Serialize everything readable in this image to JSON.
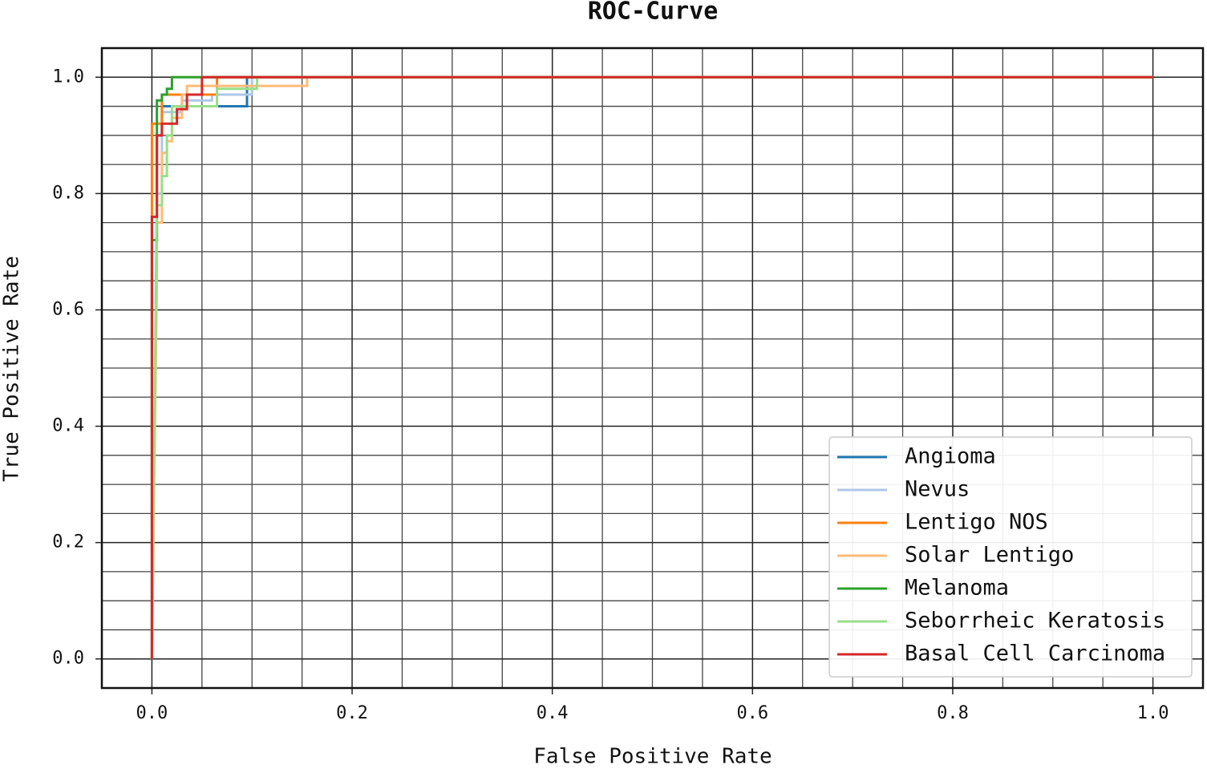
{
  "chart_data": {
    "type": "line",
    "title": "ROC-Curve",
    "x_label": "False Positive Rate",
    "y_label": "True Positive Rate",
    "xlim": [
      -0.05,
      1.05
    ],
    "ylim": [
      -0.05,
      1.05
    ],
    "xticks": [
      {
        "value": 0,
        "label": "0.0"
      },
      0.2,
      0.4,
      0.6,
      0.8,
      {
        "value": 1,
        "label": "1.0"
      }
    ],
    "yticks": [
      {
        "value": 0,
        "label": "0.0"
      },
      0.2,
      0.4,
      0.6,
      0.8,
      {
        "value": 1,
        "label": "1.0"
      }
    ],
    "minor_xticks": [
      0.05,
      0.1,
      0.15,
      0.25,
      0.3,
      0.35,
      0.45,
      0.5,
      0.55,
      0.65,
      0.7,
      0.75,
      0.85,
      0.9,
      0.95
    ],
    "minor_yticks": [
      0.05,
      0.1,
      0.15,
      0.25,
      0.3,
      0.35,
      0.45,
      0.5,
      0.55,
      0.65,
      0.7,
      0.75,
      0.85,
      0.9,
      0.95
    ],
    "grid": true,
    "legend": "lower right",
    "series": [
      {
        "name": "Angioma",
        "color": "#1f77b4",
        "x": [
          0,
          0,
          0.005,
          0.005,
          0.01,
          0.01,
          0.095,
          0.095,
          1
        ],
        "values": [
          0,
          0.76,
          0.76,
          0.9,
          0.9,
          0.95,
          0.95,
          1,
          1
        ]
      },
      {
        "name": "Nevus",
        "color": "#aec7e8",
        "x": [
          0,
          0.005,
          0.01,
          0.01,
          0.03,
          0.03,
          0.06,
          0.06,
          0.1,
          0.1,
          1
        ],
        "values": [
          0,
          0.8,
          0.8,
          0.94,
          0.94,
          0.96,
          0.96,
          0.97,
          0.97,
          1,
          1
        ]
      },
      {
        "name": "Lentigo NOS",
        "color": "#ff7f0e",
        "x": [
          0,
          0,
          0.01,
          0.01,
          0.065,
          0.065,
          1
        ],
        "values": [
          0,
          0.92,
          0.92,
          0.97,
          0.97,
          1,
          1
        ]
      },
      {
        "name": "Solar Lentigo",
        "color": "#ffbb78",
        "x": [
          0,
          0.005,
          0.005,
          0.01,
          0.01,
          0.015,
          0.015,
          0.02,
          0.02,
          0.03,
          0.03,
          0.035,
          0.035,
          0.155,
          0.155,
          1
        ],
        "values": [
          0,
          0.655,
          0.75,
          0.75,
          0.87,
          0.87,
          0.89,
          0.89,
          0.93,
          0.93,
          0.97,
          0.97,
          0.985,
          0.985,
          1,
          1
        ]
      },
      {
        "name": "Melanoma",
        "color": "#2ca02c",
        "x": [
          0,
          0,
          0.005,
          0.005,
          0.01,
          0.01,
          0.015,
          0.015,
          0.02,
          0.02,
          1
        ],
        "values": [
          0,
          0.72,
          0.72,
          0.96,
          0.96,
          0.97,
          0.97,
          0.98,
          0.98,
          1,
          1
        ]
      },
      {
        "name": "Seborrheic Keratosis",
        "color": "#98df8a",
        "x": [
          0,
          0.005,
          0.01,
          0.01,
          0.015,
          0.015,
          0.02,
          0.02,
          0.065,
          0.065,
          0.105,
          0.105,
          1
        ],
        "values": [
          0,
          0.78,
          0.78,
          0.83,
          0.83,
          0.9,
          0.9,
          0.95,
          0.95,
          0.98,
          0.98,
          1,
          1
        ]
      },
      {
        "name": "Basal Cell Carcinoma",
        "color": "#d62728",
        "x": [
          0,
          0,
          0.005,
          0.005,
          0.01,
          0.01,
          0.025,
          0.025,
          0.035,
          0.035,
          0.05,
          0.05,
          1
        ],
        "values": [
          0,
          0.76,
          0.76,
          0.9,
          0.9,
          0.92,
          0.92,
          0.945,
          0.945,
          0.97,
          0.97,
          1,
          1
        ]
      }
    ]
  }
}
